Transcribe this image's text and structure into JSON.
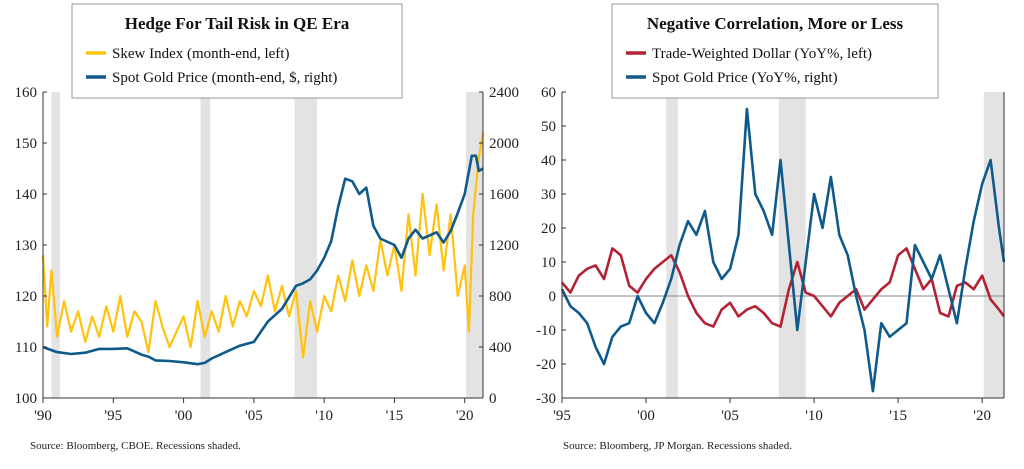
{
  "chart_data": [
    {
      "type": "line",
      "title": "Hedge For Tail Risk in QE Era",
      "source": "Source:  Bloomberg, CBOE. Recessions shaded.",
      "x_tick_labels": [
        "'90",
        "'95",
        "'00",
        "'05",
        "'10",
        "'15",
        "'20"
      ],
      "x_ticks": [
        1990,
        1995,
        2000,
        2005,
        2010,
        2015,
        2020
      ],
      "xlim": [
        1990,
        2021.3
      ],
      "ylim_left": [
        100,
        160
      ],
      "yticks_left": [
        "100",
        "110",
        "120",
        "130",
        "140",
        "150",
        "160"
      ],
      "ylim_right": [
        0,
        2400
      ],
      "yticks_right": [
        "0",
        "400",
        "800",
        "1200",
        "1600",
        "2000",
        "2400"
      ],
      "recessions": [
        [
          1990.6,
          1991.2
        ],
        [
          2001.2,
          2001.9
        ],
        [
          2007.9,
          2009.5
        ],
        [
          2020.1,
          2021.3
        ]
      ],
      "series": [
        {
          "name": "Skew Index (month-end, left)",
          "axis": "left",
          "color": "#FFC20E",
          "x": [
            1990,
            1990.3,
            1990.6,
            1991,
            1991.5,
            1992,
            1992.5,
            1993,
            1993.5,
            1994,
            1994.5,
            1995,
            1995.5,
            1996,
            1996.5,
            1997,
            1997.5,
            1998,
            1998.5,
            1999,
            1999.5,
            2000,
            2000.5,
            2001,
            2001.5,
            2002,
            2002.5,
            2003,
            2003.5,
            2004,
            2004.5,
            2005,
            2005.5,
            2006,
            2006.5,
            2007,
            2007.5,
            2008,
            2008.5,
            2009,
            2009.5,
            2010,
            2010.5,
            2011,
            2011.5,
            2012,
            2012.5,
            2013,
            2013.5,
            2014,
            2014.5,
            2015,
            2015.5,
            2016,
            2016.5,
            2017,
            2017.5,
            2018,
            2018.5,
            2019,
            2019.5,
            2020,
            2020.3,
            2020.6,
            2021,
            2021.3
          ],
          "values": [
            128,
            114,
            125,
            112,
            119,
            113,
            117,
            111,
            116,
            112,
            118,
            113,
            120,
            112,
            117,
            115,
            109,
            119,
            114,
            110,
            113,
            116,
            110,
            119,
            112,
            117,
            113,
            120,
            114,
            119,
            116,
            121,
            118,
            124,
            117,
            122,
            116,
            121,
            108,
            119,
            113,
            120,
            117,
            124,
            119,
            127,
            120,
            126,
            121,
            131,
            124,
            130,
            121,
            136,
            124,
            140,
            128,
            138,
            125,
            136,
            120,
            126,
            113,
            136,
            147,
            152
          ]
        },
        {
          "name": "Spot Gold Price (month-end, $, right)",
          "axis": "right",
          "color": "#0E5A8A",
          "x": [
            1990,
            1990.5,
            1991,
            1992,
            1993,
            1994,
            1995,
            1996,
            1997,
            1997.5,
            1998,
            1999,
            2000,
            2001,
            2001.5,
            2002,
            2003,
            2004,
            2005,
            2006,
            2007,
            2008,
            2008.5,
            2009,
            2009.5,
            2010,
            2010.5,
            2011,
            2011.5,
            2012,
            2012.5,
            2013,
            2013.5,
            2014,
            2015,
            2015.5,
            2016,
            2016.5,
            2017,
            2018,
            2018.5,
            2019,
            2019.5,
            2020,
            2020.5,
            2020.8,
            2021,
            2021.3
          ],
          "values": [
            400,
            380,
            360,
            345,
            355,
            385,
            385,
            390,
            340,
            325,
            295,
            290,
            280,
            265,
            275,
            310,
            360,
            410,
            440,
            600,
            700,
            880,
            900,
            930,
            1000,
            1100,
            1230,
            1500,
            1720,
            1700,
            1600,
            1650,
            1350,
            1250,
            1200,
            1100,
            1250,
            1320,
            1250,
            1300,
            1220,
            1310,
            1450,
            1600,
            1900,
            1900,
            1780,
            1800
          ]
        }
      ]
    },
    {
      "type": "line",
      "title": "Negative Correlation, More or Less",
      "source": "Source:  Bloomberg, JP Morgan. Recessions shaded.",
      "x_tick_labels": [
        "'95",
        "'00",
        "'05",
        "'10",
        "'15",
        "'20"
      ],
      "x_ticks": [
        1995,
        2000,
        2005,
        2010,
        2015,
        2020
      ],
      "xlim": [
        1995,
        2021.3
      ],
      "ylim": [
        -30,
        60
      ],
      "yticks": [
        "-30",
        "-20",
        "-10",
        "0",
        "10",
        "20",
        "30",
        "40",
        "50",
        "60"
      ],
      "recessions": [
        [
          2001.2,
          2001.9
        ],
        [
          2007.9,
          2009.5
        ],
        [
          2020.1,
          2021.3
        ]
      ],
      "series": [
        {
          "name": "Trade-Weighted Dollar (YoY%, left)",
          "color": "#B22234",
          "x": [
            1995,
            1995.5,
            1996,
            1996.5,
            1997,
            1997.5,
            1998,
            1998.5,
            1999,
            1999.5,
            2000,
            2000.5,
            2001,
            2001.5,
            2002,
            2002.5,
            2003,
            2003.5,
            2004,
            2004.5,
            2005,
            2005.5,
            2006,
            2006.5,
            2007,
            2007.5,
            2008,
            2008.5,
            2009,
            2009.5,
            2010,
            2010.5,
            2011,
            2011.5,
            2012,
            2012.5,
            2013,
            2013.5,
            2014,
            2014.5,
            2015,
            2015.5,
            2016,
            2016.5,
            2017,
            2017.5,
            2018,
            2018.5,
            2019,
            2019.5,
            2020,
            2020.5,
            2021,
            2021.3
          ],
          "values": [
            4,
            1,
            6,
            8,
            9,
            5,
            14,
            12,
            3,
            1,
            5,
            8,
            10,
            12,
            7,
            0,
            -5,
            -8,
            -9,
            -4,
            -2,
            -6,
            -4,
            -3,
            -5,
            -8,
            -9,
            2,
            10,
            1,
            0,
            -3,
            -6,
            -2,
            0,
            2,
            -4,
            -1,
            2,
            4,
            12,
            14,
            8,
            2,
            5,
            -5,
            -6,
            3,
            4,
            2,
            6,
            -1,
            -4,
            -6
          ]
        },
        {
          "name": "Spot Gold Price (YoY%, right)",
          "color": "#0E5A8A",
          "x": [
            1995,
            1995.5,
            1996,
            1996.5,
            1997,
            1997.5,
            1998,
            1998.5,
            1999,
            1999.5,
            2000,
            2000.5,
            2001,
            2001.5,
            2002,
            2002.5,
            2003,
            2003.5,
            2004,
            2004.5,
            2005,
            2005.5,
            2006,
            2006.5,
            2007,
            2007.5,
            2008,
            2008.5,
            2009,
            2009.5,
            2010,
            2010.5,
            2011,
            2011.5,
            2012,
            2012.5,
            2013,
            2013.5,
            2014,
            2014.5,
            2015,
            2015.5,
            2016,
            2016.5,
            2017,
            2017.5,
            2018,
            2018.5,
            2019,
            2019.5,
            2020,
            2020.5,
            2021,
            2021.3
          ],
          "values": [
            2,
            -3,
            -5,
            -8,
            -15,
            -20,
            -12,
            -9,
            -8,
            0,
            -5,
            -8,
            -2,
            5,
            15,
            22,
            18,
            25,
            10,
            5,
            8,
            18,
            55,
            30,
            25,
            18,
            40,
            15,
            -10,
            10,
            30,
            20,
            35,
            18,
            12,
            0,
            -10,
            -28,
            -8,
            -12,
            -10,
            -8,
            15,
            10,
            5,
            12,
            2,
            -8,
            8,
            22,
            33,
            40,
            20,
            10
          ]
        }
      ]
    }
  ]
}
